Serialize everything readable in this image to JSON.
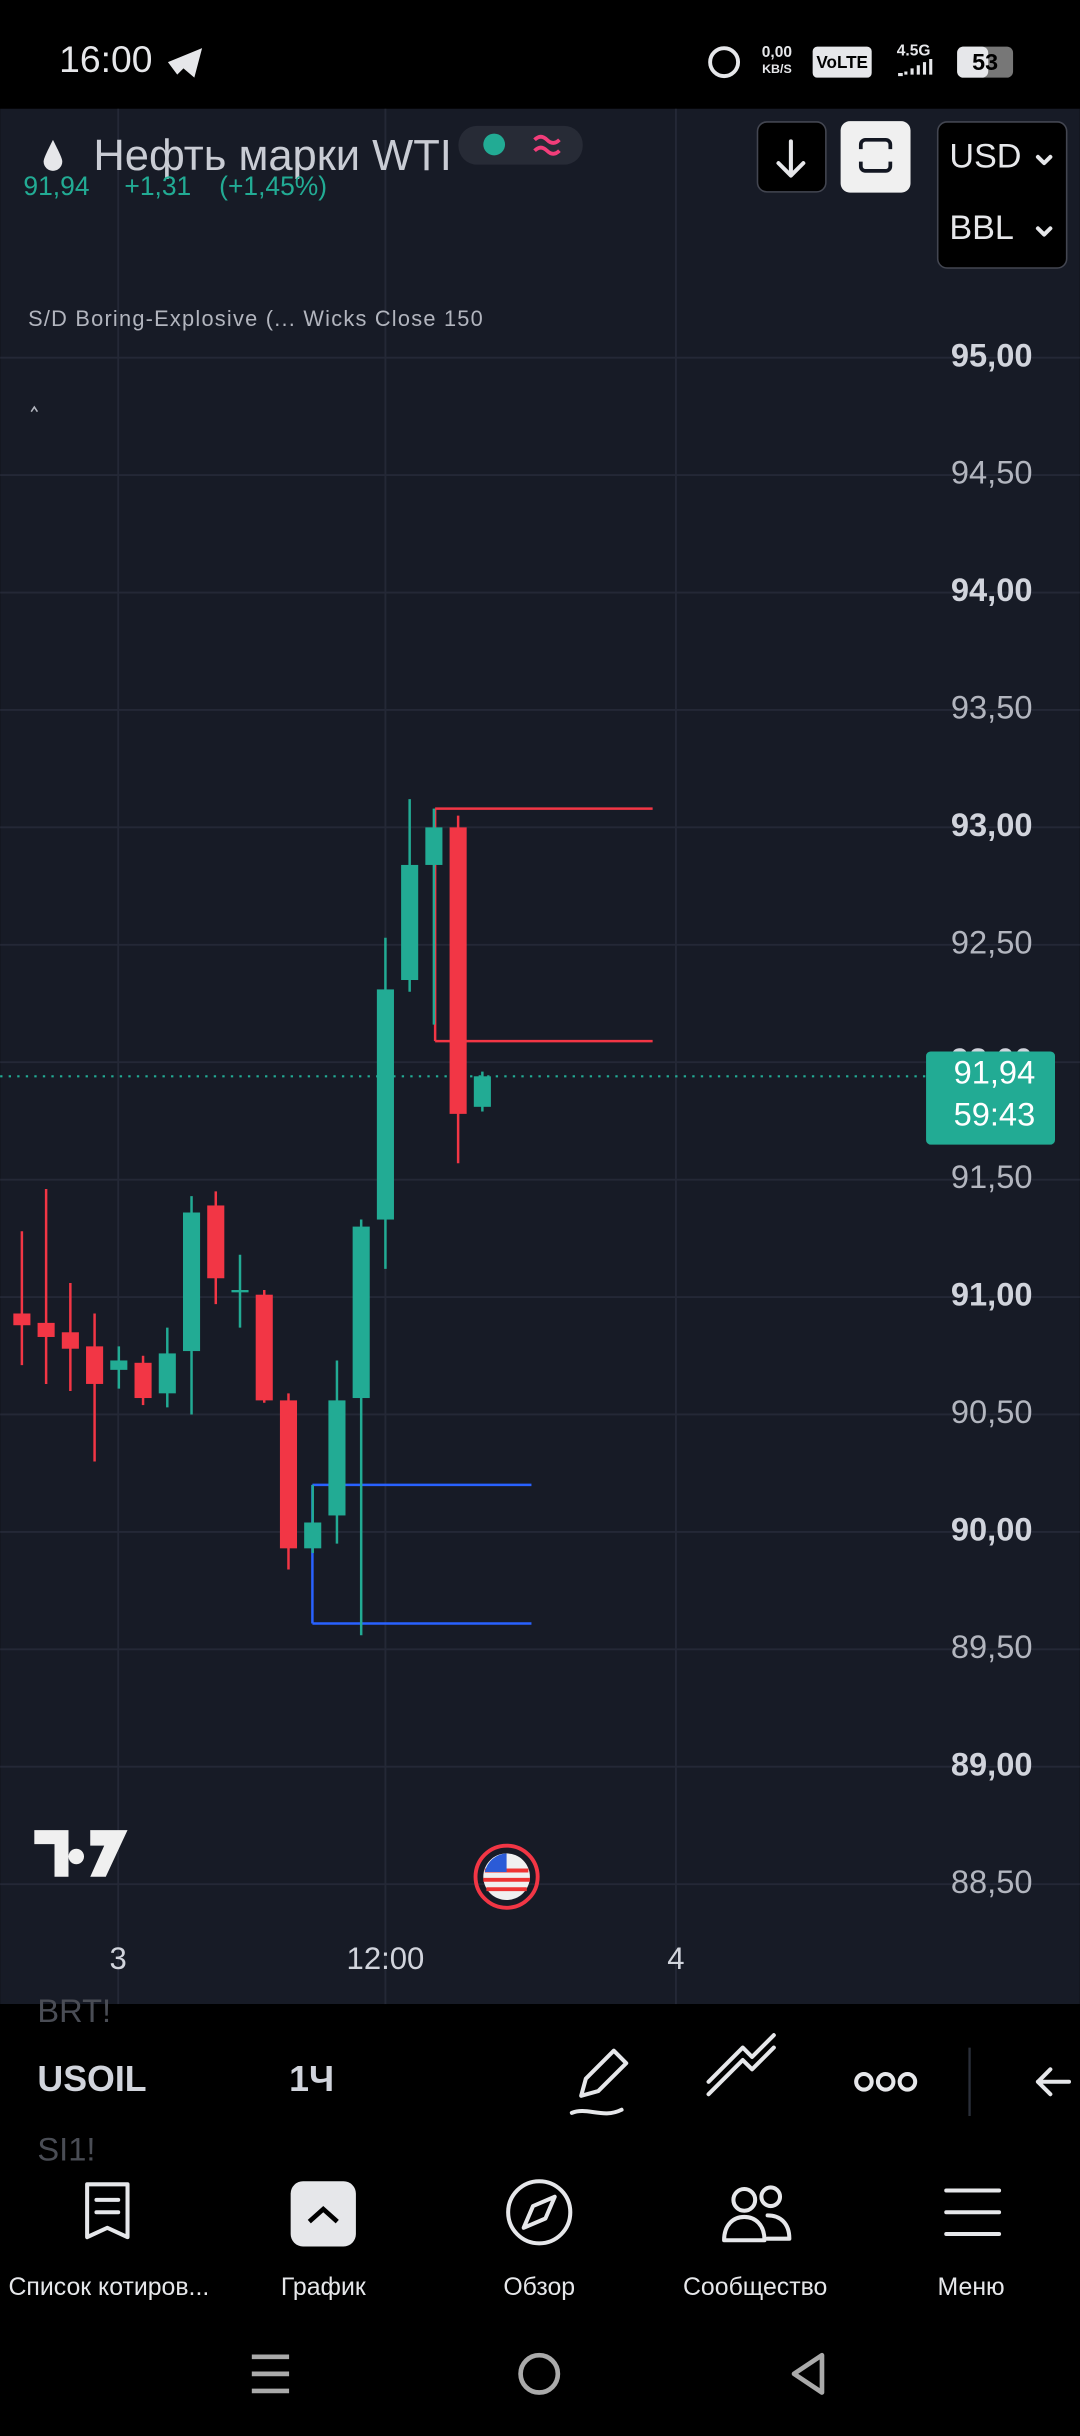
{
  "status_bar": {
    "time": "16:00",
    "net_speed": "0,00",
    "net_unit": "KB/S",
    "volte": "VoLTE",
    "network": "4.5G",
    "battery": "53"
  },
  "header": {
    "symbol_name": "Нефть марки WTI",
    "price": "91,94",
    "change": "+1,31",
    "change_percent": "(+1,45%)",
    "currency": "USD",
    "unit": "BBL"
  },
  "indicator": {
    "label": "S/D Boring-Explosive (... Wicks Close 150"
  },
  "chart_data": {
    "type": "candlestick",
    "up_color": "#22ab94",
    "down_color": "#f23645",
    "candles": [
      {
        "open": 90.93,
        "high": 91.28,
        "low": 90.71,
        "close": 90.88
      },
      {
        "open": 90.89,
        "high": 91.46,
        "low": 90.63,
        "close": 90.83
      },
      {
        "open": 90.85,
        "high": 91.06,
        "low": 90.6,
        "close": 90.78
      },
      {
        "open": 90.79,
        "high": 90.93,
        "low": 90.3,
        "close": 90.63
      },
      {
        "open": 90.69,
        "high": 90.79,
        "low": 90.61,
        "close": 90.73
      },
      {
        "open": 90.72,
        "high": 90.75,
        "low": 90.54,
        "close": 90.57
      },
      {
        "open": 90.59,
        "high": 90.87,
        "low": 90.53,
        "close": 90.76
      },
      {
        "open": 90.77,
        "high": 91.43,
        "low": 90.5,
        "close": 91.36
      },
      {
        "open": 91.39,
        "high": 91.45,
        "low": 90.97,
        "close": 91.08
      },
      {
        "open": 91.02,
        "high": 91.18,
        "low": 90.87,
        "close": 91.03
      },
      {
        "open": 91.01,
        "high": 91.03,
        "low": 90.55,
        "close": 90.56
      },
      {
        "open": 90.56,
        "high": 90.59,
        "low": 89.84,
        "close": 89.93
      },
      {
        "open": 89.93,
        "high": 90.2,
        "low": 89.91,
        "close": 90.04
      },
      {
        "open": 90.07,
        "high": 90.73,
        "low": 89.95,
        "close": 90.56
      },
      {
        "open": 90.57,
        "high": 91.33,
        "low": 89.56,
        "close": 91.3
      },
      {
        "open": 91.33,
        "high": 92.53,
        "low": 91.12,
        "close": 92.31
      },
      {
        "open": 92.35,
        "high": 93.12,
        "low": 92.3,
        "close": 92.84
      },
      {
        "open": 92.84,
        "high": 93.08,
        "low": 92.16,
        "close": 93.0
      },
      {
        "open": 93.0,
        "high": 93.05,
        "low": 91.57,
        "close": 91.78
      },
      {
        "open": 91.81,
        "high": 91.96,
        "low": 91.79,
        "close": 91.94
      }
    ],
    "zones": [
      {
        "color": "#f23645",
        "top": 93.08,
        "bottom": 92.09
      },
      {
        "color": "#2962ff",
        "top": 90.2,
        "bottom": 89.61
      }
    ],
    "last_price": 91.94,
    "last_price_label": "91,94",
    "countdown": "59:43",
    "ylim": [
      88.32,
      96.06
    ],
    "yticks": [
      {
        "value": 95,
        "label": "95,00"
      },
      {
        "value": 94.5,
        "label": "94,50"
      },
      {
        "value": 94,
        "label": "94,00"
      },
      {
        "value": 93.5,
        "label": "93,50"
      },
      {
        "value": 93,
        "label": "93,00"
      },
      {
        "value": 92.5,
        "label": "92,50"
      },
      {
        "value": 92,
        "label": "92,00"
      },
      {
        "value": 91.5,
        "label": "91,50"
      },
      {
        "value": 91,
        "label": "91,00"
      },
      {
        "value": 90.5,
        "label": "90,50"
      },
      {
        "value": 90,
        "label": "90,00"
      },
      {
        "value": 89.5,
        "label": "89,50"
      },
      {
        "value": 89,
        "label": "89,00"
      },
      {
        "value": 88.5,
        "label": "88,50"
      }
    ],
    "xtick_labels": [
      "3",
      "12:00",
      "4"
    ],
    "grid": true
  },
  "toolbar": {
    "prev_symbol": "BRT!",
    "symbol": "USOIL",
    "next_symbol": "SI1!",
    "interval": "1Ч"
  },
  "nav": {
    "tabs": [
      "Список котиров...",
      "График",
      "Обзор",
      "Сообщество",
      "Меню"
    ]
  }
}
